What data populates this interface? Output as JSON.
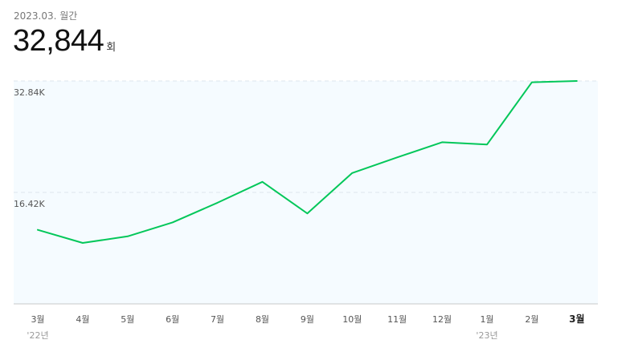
{
  "summary": {
    "period": "2023.03. 월간",
    "value": "32,844",
    "unit": "회"
  },
  "chart_data": {
    "type": "line",
    "categories": [
      "3월",
      "4월",
      "5월",
      "6월",
      "7월",
      "8월",
      "9월",
      "10월",
      "11월",
      "12월",
      "1월",
      "2월",
      "3월"
    ],
    "year_labels": [
      {
        "index": 0,
        "label": "'22년"
      },
      {
        "index": 10,
        "label": "'23년"
      }
    ],
    "series": [
      {
        "values": [
          10900,
          8980,
          9950,
          12000,
          14900,
          17980,
          13330,
          19280,
          21580,
          23820,
          23480,
          32650,
          32844
        ]
      }
    ],
    "y_ticks": [
      {
        "value": 16420,
        "label": "16.42K"
      },
      {
        "value": 32840,
        "label": "32.84K"
      }
    ],
    "ylim": [
      0,
      32844
    ],
    "grid": true,
    "colors": {
      "line": "#03c75a",
      "plot_background": "#f5fbff",
      "grid": "#dde6ee",
      "axis": "#c8c8c8"
    }
  }
}
